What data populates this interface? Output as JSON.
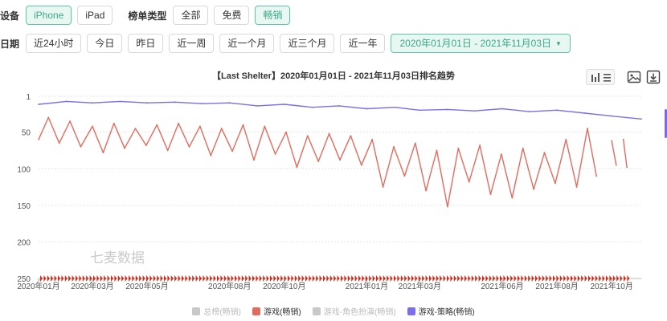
{
  "filters": {
    "device_label": "设备",
    "devices": [
      {
        "label": "iPhone",
        "active": true
      },
      {
        "label": "iPad",
        "active": false
      }
    ],
    "board_label": "榜单类型",
    "boards": [
      {
        "label": "全部",
        "active": false
      },
      {
        "label": "免费",
        "active": false
      },
      {
        "label": "畅销",
        "active": true
      }
    ],
    "date_label": "日期",
    "dates": [
      "近24小时",
      "今日",
      "昨日",
      "近一周",
      "近一个月",
      "近三个月",
      "近一年"
    ],
    "date_range": "2020年01月01日 - 2021年11月03日"
  },
  "toolbar": {
    "icons": [
      "bar-chart-icon",
      "list-icon",
      "image-icon",
      "download-icon"
    ]
  },
  "watermark": "七麦数据",
  "colors": {
    "accent": "#3aa888",
    "red": "#e36b5e",
    "purple": "#7b6ef0",
    "gray": "#c8c8c8",
    "tick_red": "#d42a1a"
  },
  "chart_data": {
    "type": "line",
    "title": "【Last Shelter】2020年01月01日 - 2021年11月03日排名趋势",
    "xlabel": "",
    "ylabel": "",
    "y_reversed": true,
    "ylim": [
      1,
      250
    ],
    "y_ticks": [
      1,
      50,
      100,
      150,
      200,
      250
    ],
    "x_ticks": [
      "2020年01月",
      "2020年03月",
      "2020年05月",
      "2020年08月",
      "2020年10月",
      "2021年01月",
      "2021年03月",
      "2021年06月",
      "2021年08月",
      "2021年10月"
    ],
    "x_start": "2020-01-01",
    "x_end": "2021-11-03",
    "legend_position": "bottom",
    "series": [
      {
        "name": "总榜(畅销)",
        "color": "#c8c8c8",
        "visible": false,
        "points": []
      },
      {
        "name": "游戏(畅销)",
        "color": "#e36b5e",
        "visible": true,
        "points": [
          [
            "2020-01-01",
            60
          ],
          [
            "2020-01-12",
            30
          ],
          [
            "2020-01-24",
            65
          ],
          [
            "2020-02-05",
            35
          ],
          [
            "2020-02-17",
            70
          ],
          [
            "2020-03-01",
            42
          ],
          [
            "2020-03-13",
            78
          ],
          [
            "2020-03-25",
            38
          ],
          [
            "2020-04-06",
            72
          ],
          [
            "2020-04-18",
            45
          ],
          [
            "2020-04-30",
            68
          ],
          [
            "2020-05-12",
            40
          ],
          [
            "2020-05-24",
            75
          ],
          [
            "2020-06-05",
            38
          ],
          [
            "2020-06-17",
            70
          ],
          [
            "2020-06-29",
            42
          ],
          [
            "2020-07-11",
            82
          ],
          [
            "2020-07-23",
            45
          ],
          [
            "2020-08-04",
            76
          ],
          [
            "2020-08-16",
            40
          ],
          [
            "2020-08-28",
            88
          ],
          [
            "2020-09-09",
            42
          ],
          [
            "2020-09-21",
            80
          ],
          [
            "2020-10-03",
            50
          ],
          [
            "2020-10-15",
            98
          ],
          [
            "2020-10-27",
            55
          ],
          [
            "2020-11-08",
            90
          ],
          [
            "2020-11-20",
            52
          ],
          [
            "2020-12-02",
            88
          ],
          [
            "2020-12-14",
            55
          ],
          [
            "2020-12-26",
            95
          ],
          [
            "2021-01-07",
            60
          ],
          [
            "2021-01-19",
            125
          ],
          [
            "2021-01-31",
            70
          ],
          [
            "2021-02-12",
            110
          ],
          [
            "2021-02-24",
            65
          ],
          [
            "2021-03-08",
            130
          ],
          [
            "2021-03-20",
            75
          ],
          [
            "2021-04-01",
            152
          ],
          [
            "2021-04-13",
            72
          ],
          [
            "2021-04-25",
            118
          ],
          [
            "2021-05-07",
            68
          ],
          [
            "2021-05-19",
            135
          ],
          [
            "2021-05-31",
            80
          ],
          [
            "2021-06-12",
            140
          ],
          [
            "2021-06-24",
            72
          ],
          [
            "2021-07-06",
            128
          ],
          [
            "2021-07-18",
            78
          ],
          [
            "2021-07-30",
            120
          ],
          [
            "2021-08-11",
            60
          ],
          [
            "2021-08-23",
            125
          ],
          [
            "2021-09-04",
            45
          ],
          [
            "2021-09-14",
            110
          ],
          [
            "2021-09-20",
            null
          ],
          [
            "2021-10-01",
            62
          ],
          [
            "2021-10-06",
            95
          ],
          [
            "2021-10-10",
            null
          ],
          [
            "2021-10-14",
            60
          ],
          [
            "2021-10-18",
            98
          ]
        ]
      },
      {
        "name": "游戏-角色扮演(畅销)",
        "color": "#c8c8c8",
        "visible": false,
        "points": []
      },
      {
        "name": "游戏-策略(畅销)",
        "color": "#7b6ef0",
        "visible": true,
        "points": [
          [
            "2020-01-01",
            12
          ],
          [
            "2020-02-01",
            8
          ],
          [
            "2020-03-01",
            10
          ],
          [
            "2020-04-01",
            8
          ],
          [
            "2020-05-01",
            10
          ],
          [
            "2020-06-01",
            9
          ],
          [
            "2020-07-01",
            11
          ],
          [
            "2020-08-01",
            10
          ],
          [
            "2020-09-01",
            14
          ],
          [
            "2020-10-01",
            12
          ],
          [
            "2020-11-01",
            16
          ],
          [
            "2020-12-01",
            14
          ],
          [
            "2021-01-01",
            18
          ],
          [
            "2021-02-01",
            16
          ],
          [
            "2021-03-01",
            20
          ],
          [
            "2021-04-01",
            19
          ],
          [
            "2021-05-01",
            21
          ],
          [
            "2021-06-01",
            18
          ],
          [
            "2021-07-01",
            22
          ],
          [
            "2021-08-01",
            20
          ],
          [
            "2021-09-01",
            24
          ],
          [
            "2021-10-01",
            28
          ],
          [
            "2021-11-03",
            32
          ]
        ]
      }
    ]
  }
}
